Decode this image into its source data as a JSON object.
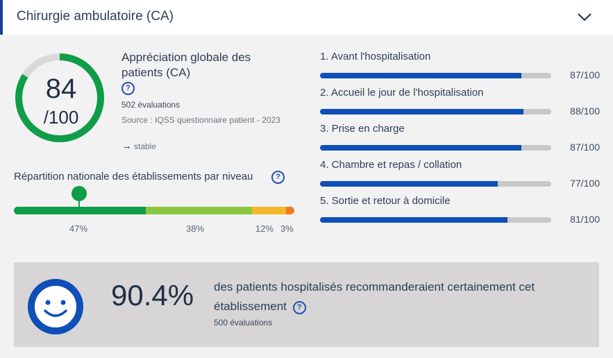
{
  "header": {
    "title": "Chirurgie ambulatoire (CA)"
  },
  "overall": {
    "score": "84",
    "max": "/100",
    "score_fraction": 0.84,
    "title": "Appréciation globale des patients (CA)",
    "evaluations": "502 évaluations",
    "source": "Source : IQSS questionnaire patient - 2023",
    "trend": "stable"
  },
  "distribution": {
    "title": "Répartition nationale des établissements par niveau",
    "segments": [
      {
        "label": "47%",
        "percent": 47,
        "color": "#0f9d48"
      },
      {
        "label": "38%",
        "percent": 38,
        "color": "#8cc63f"
      },
      {
        "label": "12%",
        "percent": 12,
        "color": "#f2b92d"
      },
      {
        "label": "3%",
        "percent": 3,
        "color": "#ee7d21"
      }
    ]
  },
  "criteria": [
    {
      "label": "1. Avant l'hospitalisation",
      "score": "87/100",
      "value": 87
    },
    {
      "label": "2. Accueil le jour de l'hospitalisation",
      "score": "88/100",
      "value": 88
    },
    {
      "label": "3. Prise en charge",
      "score": "87/100",
      "value": 87
    },
    {
      "label": "4. Chambre et repas / collation",
      "score": "77/100",
      "value": 77
    },
    {
      "label": "5. Sortie et retour à domicile",
      "score": "81/100",
      "value": 81
    }
  ],
  "recommendation": {
    "value": "90.4%",
    "value_fraction": 0.904,
    "text": "des patients hospitalisés recommanderaient certainement cet établissement",
    "evaluations": "500 évaluations"
  },
  "colors": {
    "accent": "#0e4fb8",
    "gauge": "#0f9d48",
    "gauge_track": "#d9d9d9"
  },
  "icons": [
    "chevron-down-icon",
    "help-icon",
    "arrow-right-icon",
    "smiley-icon"
  ]
}
